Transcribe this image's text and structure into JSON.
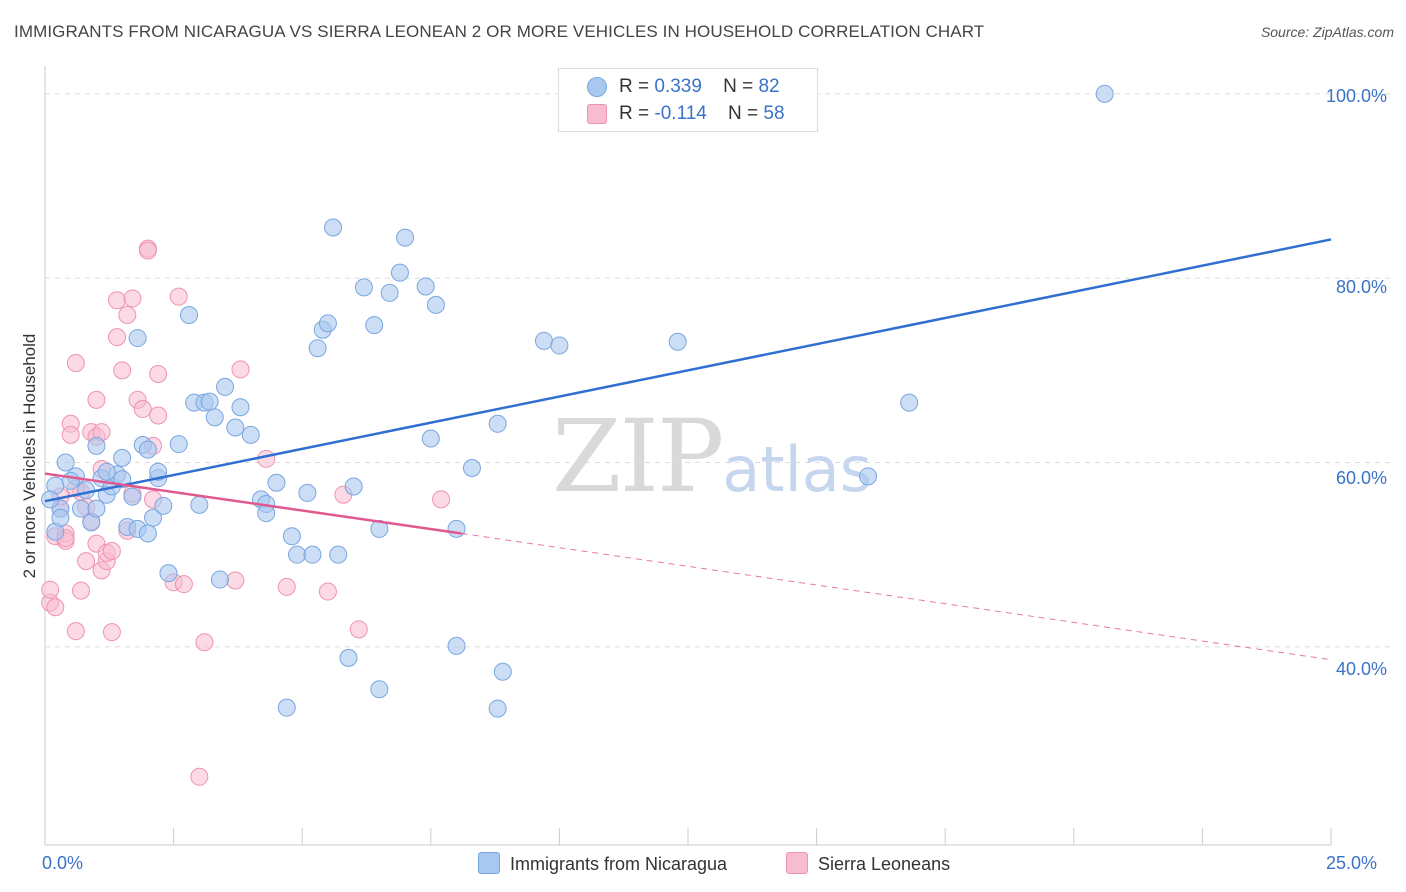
{
  "title": "IMMIGRANTS FROM NICARAGUA VS SIERRA LEONEAN 2 OR MORE VEHICLES IN HOUSEHOLD CORRELATION CHART",
  "source": "Source: ZipAtlas.com",
  "watermark": {
    "zip": "ZIP",
    "atlas": "atlas"
  },
  "colors": {
    "blue_fill": "#a9c8f0",
    "blue_stroke": "#7aa6e0",
    "blue_line": "#2f6fd0",
    "pink_fill": "#f7bcd0",
    "pink_stroke": "#ee93b3",
    "pink_line": "#e0588e",
    "tick_text": "#3a72c8",
    "grid": "#dcdcdc"
  },
  "legend": {
    "rows": [
      {
        "r_label": "R =",
        "r_value": "0.339",
        "n_label": "N =",
        "n_value": "82",
        "color": "#a9c8f0"
      },
      {
        "r_label": "R =",
        "r_value": "-0.114",
        "n_label": "N =",
        "n_value": "58",
        "color": "#f7bcd0"
      }
    ]
  },
  "bottom_legend": [
    {
      "label": "Immigrants from Nicaragua",
      "color": "#a9c8f0"
    },
    {
      "label": "Sierra Leoneans",
      "color": "#f7bcd0"
    }
  ],
  "chart_data": {
    "type": "scatter",
    "title": "IMMIGRANTS FROM NICARAGUA VS SIERRA LEONEAN 2 OR MORE VEHICLES IN HOUSEHOLD CORRELATION CHART",
    "xlabel": "",
    "ylabel": "2 or more Vehicles in Household",
    "xlim": [
      0,
      25
    ],
    "ylim": [
      18.5,
      101.5
    ],
    "x_tick_labels": [
      "0.0%",
      "25.0%"
    ],
    "y_ticks": [
      40,
      60,
      80,
      100
    ],
    "y_tick_labels": [
      "40.0%",
      "60.0%",
      "80.0%",
      "100.0%"
    ],
    "grid": true,
    "legend_position": "top-center",
    "series": [
      {
        "name": "Immigrants from Nicaragua",
        "r": 0.339,
        "n": 82,
        "trend": {
          "x": [
            0.0,
            25.0
          ],
          "y": [
            55.8,
            84.2
          ],
          "style": "solid"
        },
        "points": [
          [
            0.2,
            57.5
          ],
          [
            0.4,
            60.0
          ],
          [
            0.6,
            58.5
          ],
          [
            0.3,
            55.0
          ],
          [
            0.8,
            57.0
          ],
          [
            0.9,
            53.5
          ],
          [
            1.0,
            61.8
          ],
          [
            1.1,
            58.3
          ],
          [
            1.2,
            56.5
          ],
          [
            1.3,
            57.4
          ],
          [
            1.4,
            58.7
          ],
          [
            1.5,
            58.2
          ],
          [
            1.6,
            53.0
          ],
          [
            1.7,
            56.3
          ],
          [
            1.8,
            52.8
          ],
          [
            1.9,
            61.9
          ],
          [
            2.0,
            61.4
          ],
          [
            2.1,
            54.0
          ],
          [
            2.2,
            58.3
          ],
          [
            2.3,
            55.3
          ],
          [
            2.4,
            48.0
          ],
          [
            0.7,
            55.0
          ],
          [
            1.8,
            73.5
          ],
          [
            2.8,
            76.0
          ],
          [
            2.9,
            66.5
          ],
          [
            3.1,
            66.5
          ],
          [
            3.2,
            66.6
          ],
          [
            3.3,
            64.9
          ],
          [
            3.5,
            68.2
          ],
          [
            3.7,
            63.8
          ],
          [
            3.8,
            66.0
          ],
          [
            4.0,
            63.0
          ],
          [
            4.2,
            56.0
          ],
          [
            4.3,
            55.5
          ],
          [
            4.5,
            57.8
          ],
          [
            4.8,
            52.0
          ],
          [
            5.1,
            56.7
          ],
          [
            5.3,
            72.4
          ],
          [
            5.4,
            74.4
          ],
          [
            5.5,
            75.1
          ],
          [
            5.6,
            85.5
          ],
          [
            6.0,
            57.4
          ],
          [
            6.2,
            79.0
          ],
          [
            6.4,
            74.9
          ],
          [
            6.5,
            52.8
          ],
          [
            6.7,
            78.4
          ],
          [
            6.9,
            80.6
          ],
          [
            7.0,
            84.4
          ],
          [
            7.4,
            79.1
          ],
          [
            7.6,
            77.1
          ],
          [
            7.5,
            62.6
          ],
          [
            8.0,
            52.8
          ],
          [
            8.3,
            59.4
          ],
          [
            8.8,
            64.2
          ],
          [
            9.7,
            73.2
          ],
          [
            10.0,
            72.7
          ],
          [
            12.3,
            73.1
          ],
          [
            16.0,
            58.5
          ],
          [
            16.8,
            66.5
          ],
          [
            20.6,
            100.0
          ],
          [
            5.9,
            38.8
          ],
          [
            6.5,
            35.4
          ],
          [
            4.7,
            33.4
          ],
          [
            8.0,
            40.1
          ],
          [
            8.9,
            37.3
          ],
          [
            8.8,
            33.3
          ],
          [
            3.4,
            47.3
          ],
          [
            4.9,
            50.0
          ],
          [
            5.2,
            50.0
          ],
          [
            5.7,
            50.0
          ],
          [
            2.2,
            59.0
          ],
          [
            1.5,
            60.5
          ],
          [
            0.5,
            58.0
          ],
          [
            1.0,
            55.0
          ],
          [
            2.6,
            62.0
          ],
          [
            3.0,
            55.4
          ],
          [
            4.3,
            54.5
          ],
          [
            0.2,
            52.5
          ],
          [
            0.1,
            56.0
          ],
          [
            0.3,
            54.0
          ],
          [
            1.2,
            59.0
          ],
          [
            2.0,
            52.3
          ]
        ]
      },
      {
        "name": "Sierra Leoneans",
        "r": -0.114,
        "n": 58,
        "trend": {
          "x": [
            0.0,
            8.1
          ],
          "y": [
            58.8,
            52.3
          ],
          "style": "solid",
          "extended": {
            "x": [
              8.1,
              25.0
            ],
            "y": [
              52.3,
              38.6
            ],
            "style": "dashed"
          }
        },
        "points": [
          [
            0.1,
            44.8
          ],
          [
            0.1,
            46.2
          ],
          [
            0.2,
            52.0
          ],
          [
            0.3,
            55.0
          ],
          [
            0.4,
            52.3
          ],
          [
            0.4,
            51.5
          ],
          [
            0.5,
            64.2
          ],
          [
            0.5,
            63.0
          ],
          [
            0.6,
            70.8
          ],
          [
            0.6,
            41.7
          ],
          [
            0.7,
            46.1
          ],
          [
            0.7,
            56.8
          ],
          [
            0.8,
            49.3
          ],
          [
            0.9,
            63.3
          ],
          [
            0.9,
            53.6
          ],
          [
            1.0,
            62.8
          ],
          [
            1.0,
            51.2
          ],
          [
            1.0,
            66.8
          ],
          [
            1.1,
            59.3
          ],
          [
            1.1,
            48.3
          ],
          [
            1.1,
            63.3
          ],
          [
            1.2,
            49.3
          ],
          [
            1.2,
            50.2
          ],
          [
            1.3,
            50.4
          ],
          [
            1.3,
            41.6
          ],
          [
            1.4,
            73.6
          ],
          [
            1.4,
            77.6
          ],
          [
            1.5,
            70.0
          ],
          [
            1.6,
            76.0
          ],
          [
            1.7,
            56.6
          ],
          [
            1.7,
            77.8
          ],
          [
            1.8,
            66.8
          ],
          [
            1.9,
            65.8
          ],
          [
            2.0,
            83.2
          ],
          [
            2.1,
            61.8
          ],
          [
            2.1,
            56.0
          ],
          [
            2.2,
            69.6
          ],
          [
            2.2,
            65.1
          ],
          [
            2.5,
            47.0
          ],
          [
            2.6,
            78.0
          ],
          [
            2.7,
            46.8
          ],
          [
            3.0,
            25.9
          ],
          [
            3.1,
            40.5
          ],
          [
            3.7,
            47.2
          ],
          [
            3.8,
            70.1
          ],
          [
            4.3,
            60.4
          ],
          [
            4.7,
            46.5
          ],
          [
            5.5,
            46.0
          ],
          [
            5.8,
            56.5
          ],
          [
            6.1,
            41.9
          ],
          [
            7.7,
            56.0
          ],
          [
            0.3,
            56.3
          ],
          [
            0.2,
            44.3
          ],
          [
            0.4,
            51.8
          ],
          [
            0.8,
            55.2
          ],
          [
            1.6,
            52.6
          ],
          [
            0.6,
            57.2
          ],
          [
            2.0,
            83.0
          ]
        ]
      }
    ]
  },
  "axes": {
    "ylabel": "2 or more Vehicles in Household",
    "x_left_label": "0.0%",
    "x_right_label": "25.0%",
    "y_labels": [
      "100.0%",
      "80.0%",
      "60.0%",
      "40.0%"
    ]
  }
}
